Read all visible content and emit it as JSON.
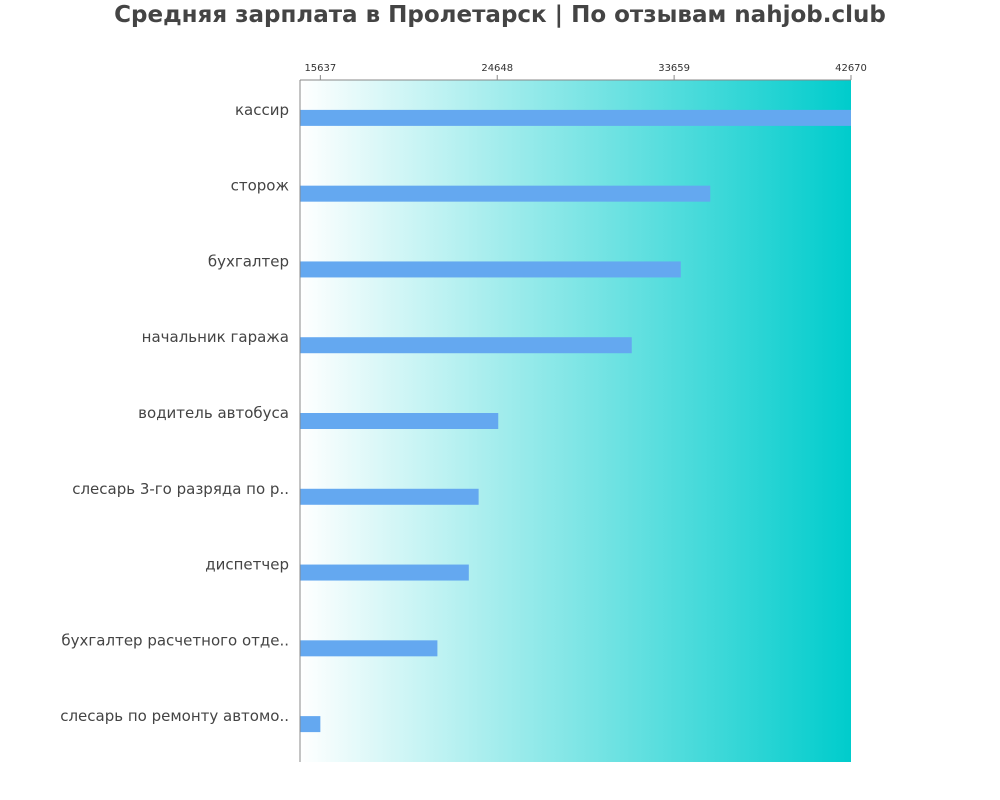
{
  "chart_data": {
    "type": "bar",
    "orientation": "horizontal",
    "title": "Средняя зарплата в Пролетарск | По отзывам nahjob.club",
    "categories": [
      "кассир",
      "сторож",
      "бухгалтер",
      "начальник гаража",
      "водитель автобуса",
      "слесарь 3-го разряда по р..",
      "диспетчер",
      "бухгалтер расчетного отде..",
      "слесарь по ремонту автомо.."
    ],
    "values": [
      42670,
      35500,
      34000,
      31500,
      24700,
      23700,
      23200,
      21600,
      15637
    ],
    "xticks": [
      "15637",
      "24648",
      "33659",
      "42670"
    ],
    "xtick_values": [
      15637,
      24648,
      33659,
      42670
    ],
    "xlim": [
      14600,
      42670
    ],
    "xlabel": "",
    "ylabel": "",
    "grid": false,
    "colors": {
      "bar": "#64a8f0",
      "background_start": "#ffffff",
      "background_end": "#00cccc",
      "axis": "#888888",
      "title": "#444444",
      "label": "#444444"
    }
  }
}
